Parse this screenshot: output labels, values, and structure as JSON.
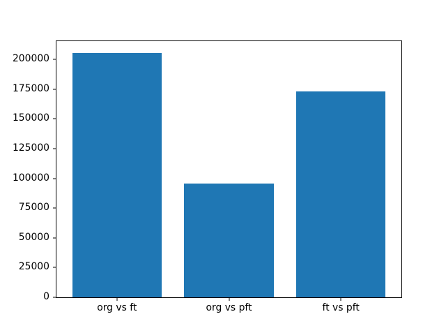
{
  "figure": {
    "background": "#ffffff"
  },
  "chart_data": {
    "type": "bar",
    "title": "",
    "xlabel": "",
    "ylabel": "",
    "categories": [
      "org vs ft",
      "org vs pft",
      "ft vs pft"
    ],
    "values": [
      205000,
      95500,
      173000
    ],
    "bar_color": "#1f77b4",
    "axis_color": "#000000",
    "text_color": "#000000",
    "ylim": [
      0,
      215250
    ],
    "yticks": [
      0,
      25000,
      50000,
      75000,
      100000,
      125000,
      150000,
      175000,
      200000
    ],
    "ytick_labels": [
      "0",
      "25000",
      "50000",
      "75000",
      "100000",
      "125000",
      "150000",
      "175000",
      "200000"
    ],
    "bar_width_fraction": 0.8,
    "grid": false,
    "legend": null
  }
}
